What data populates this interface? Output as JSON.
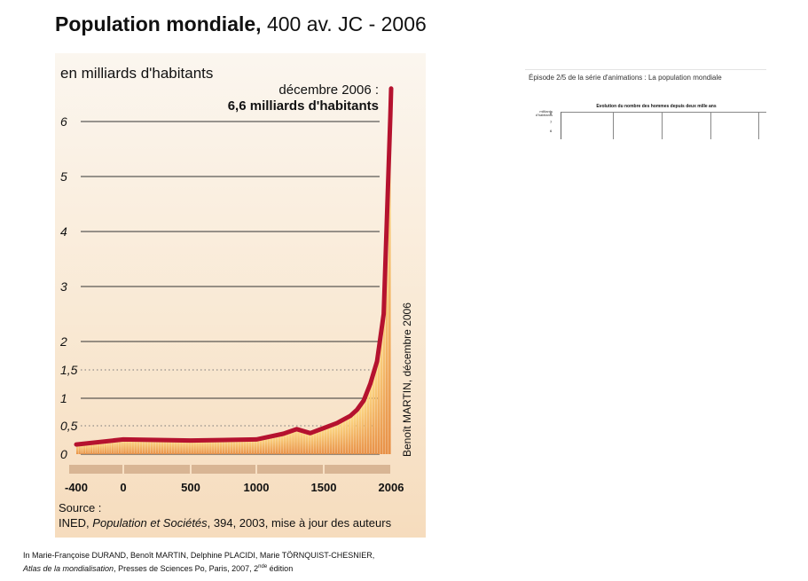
{
  "header": {
    "title_bold": "Population mondiale,",
    "title_rest": "400 av. JC - 2006"
  },
  "chart_data": {
    "type": "area",
    "title": "",
    "xlabel": "",
    "ylabel": "en milliards d'habitants",
    "x": [
      -400,
      0,
      500,
      1000,
      1200,
      1300,
      1400,
      1500,
      1600,
      1700,
      1750,
      1800,
      1850,
      1900,
      1950,
      2000,
      2006
    ],
    "series": [
      {
        "values": [
          0.17,
          0.26,
          0.24,
          0.26,
          0.36,
          0.44,
          0.37,
          0.46,
          0.55,
          0.68,
          0.79,
          0.96,
          1.26,
          1.65,
          2.5,
          6.1,
          6.6
        ]
      }
    ],
    "ylim": [
      0,
      7
    ],
    "xlim": [
      -400,
      2006
    ],
    "y_ticks": [
      0,
      0.5,
      1,
      1.5,
      2,
      3,
      4,
      5,
      6
    ],
    "y_tick_labels": [
      "0",
      "0,5",
      "1",
      "1,5",
      "2",
      "3",
      "4",
      "5",
      "6"
    ],
    "dotted_gridlines": [
      0.5,
      1.5
    ],
    "x_tick_labels": [
      "-400",
      "0",
      "500",
      "1000",
      "1500",
      "2006"
    ],
    "line_color": "#b5122f",
    "fill_color_top": "#ffdf8a",
    "fill_color_bottom": "#e89148",
    "annotation": {
      "line1": "décembre 2006 :",
      "line2": "6,6 milliards d'habitants"
    },
    "credit": "Benoît MARTIN, décembre 2006",
    "source": {
      "label": "Source :",
      "org": "INED, ",
      "publication": "Population et Sociétés",
      "details": ", 394, 2003, mise à jour des auteurs"
    }
  },
  "citation": {
    "line1": "In Marie-Françoise DURAND, Benoît MARTIN, Delphine PLACIDI, Marie TÖRNQUIST-CHESNIER,",
    "line2_italic": "Atlas de la mondialisation",
    "line2_rest": ", Presses de Sciences Po, Paris, 2007, 2",
    "line2_sup": "nde",
    "line2_end": " édition"
  },
  "thumbnail": {
    "title": "Épisode 2/5 de la série d'animations : La population mondiale",
    "chart_title": "Evolution du nombre des hommes depuis deux mille ans",
    "axis_label": "milliards d'habitants",
    "ticks": [
      "8",
      "7",
      "6"
    ]
  }
}
